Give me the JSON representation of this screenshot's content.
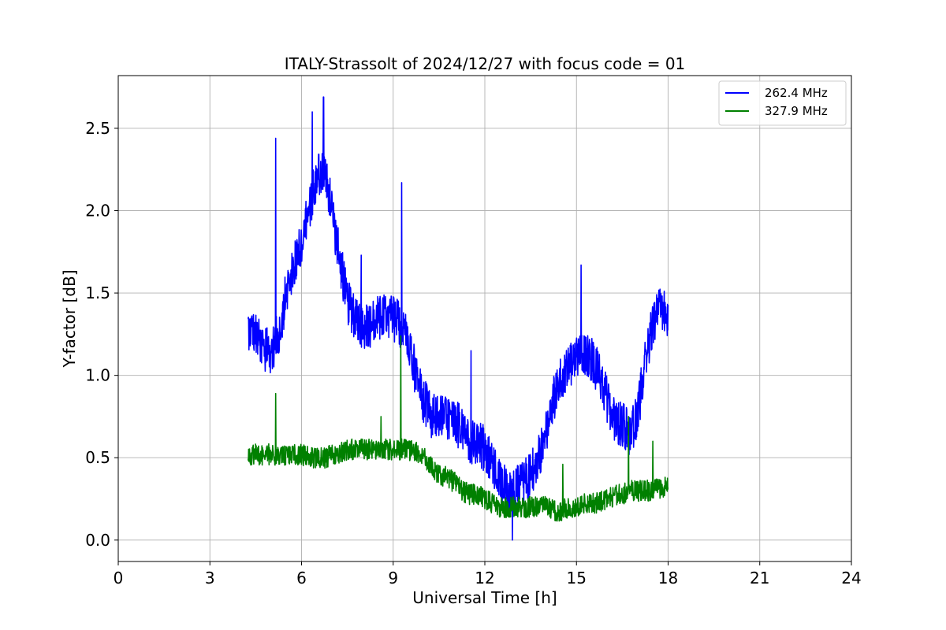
{
  "chart_data": {
    "type": "line",
    "title": "ITALY-Strassolt of 2024/12/27 with focus code = 01",
    "xlabel": "Universal Time [h]",
    "ylabel": "Y-factor [dB]",
    "xlim": [
      0,
      24
    ],
    "ylim": [
      -0.13,
      2.82
    ],
    "xticks": [
      0,
      3,
      6,
      9,
      12,
      15,
      18,
      21,
      24
    ],
    "xtick_labels": [
      "0",
      "3",
      "6",
      "9",
      "12",
      "15",
      "18",
      "21",
      "24"
    ],
    "yticks": [
      0.0,
      0.5,
      1.0,
      1.5,
      2.0,
      2.5
    ],
    "ytick_labels": [
      "0.0",
      "0.5",
      "1.0",
      "1.5",
      "2.0",
      "2.5"
    ],
    "grid": true,
    "legend_position": "top-right",
    "series": [
      {
        "name": "262.4 MHz",
        "color": "#0000ff",
        "x": [
          4.25,
          4.5,
          4.75,
          5.0,
          5.25,
          5.5,
          5.75,
          6.0,
          6.25,
          6.5,
          6.75,
          7.0,
          7.25,
          7.5,
          7.75,
          8.0,
          8.25,
          8.5,
          8.75,
          9.0,
          9.25,
          9.5,
          9.75,
          10.0,
          10.25,
          10.5,
          10.75,
          11.0,
          11.25,
          11.5,
          11.75,
          12.0,
          12.25,
          12.5,
          12.75,
          13.0,
          13.25,
          13.5,
          13.75,
          14.0,
          14.25,
          14.5,
          14.75,
          15.0,
          15.25,
          15.5,
          15.75,
          16.0,
          16.25,
          16.5,
          16.75,
          17.0,
          17.25,
          17.5,
          17.75,
          18.0
        ],
        "y": [
          1.3,
          1.25,
          1.15,
          1.15,
          1.25,
          1.5,
          1.65,
          1.82,
          2.0,
          2.22,
          2.25,
          2.0,
          1.7,
          1.45,
          1.35,
          1.3,
          1.3,
          1.35,
          1.35,
          1.35,
          1.3,
          1.2,
          1.0,
          0.85,
          0.75,
          0.75,
          0.75,
          0.7,
          0.7,
          0.6,
          0.6,
          0.55,
          0.45,
          0.35,
          0.3,
          0.3,
          0.35,
          0.4,
          0.5,
          0.65,
          0.85,
          1.0,
          1.05,
          1.1,
          1.12,
          1.1,
          1.0,
          0.85,
          0.72,
          0.7,
          0.65,
          0.75,
          1.1,
          1.3,
          1.4,
          1.35
        ],
        "amplitude": 0.14,
        "spikes": [
          {
            "x": 5.15,
            "y": 2.44
          },
          {
            "x": 6.35,
            "y": 2.6
          },
          {
            "x": 6.72,
            "y": 2.69
          },
          {
            "x": 9.28,
            "y": 2.17
          },
          {
            "x": 7.95,
            "y": 1.73
          },
          {
            "x": 11.55,
            "y": 1.15
          },
          {
            "x": 12.9,
            "y": 0.0
          },
          {
            "x": 15.15,
            "y": 1.67
          }
        ]
      },
      {
        "name": "327.9 MHz",
        "color": "#008000",
        "x": [
          4.25,
          4.5,
          4.75,
          5.0,
          5.25,
          5.5,
          5.75,
          6.0,
          6.25,
          6.5,
          6.75,
          7.0,
          7.25,
          7.5,
          7.75,
          8.0,
          8.25,
          8.5,
          8.75,
          9.0,
          9.25,
          9.5,
          9.75,
          10.0,
          10.25,
          10.5,
          10.75,
          11.0,
          11.25,
          11.5,
          11.75,
          12.0,
          12.25,
          12.5,
          12.75,
          13.0,
          13.25,
          13.5,
          13.75,
          14.0,
          14.25,
          14.5,
          14.75,
          15.0,
          15.25,
          15.5,
          15.75,
          16.0,
          16.25,
          16.5,
          16.75,
          17.0,
          17.25,
          17.5,
          17.75,
          18.0
        ],
        "y": [
          0.52,
          0.52,
          0.52,
          0.52,
          0.52,
          0.52,
          0.52,
          0.52,
          0.5,
          0.5,
          0.5,
          0.52,
          0.53,
          0.55,
          0.55,
          0.55,
          0.55,
          0.55,
          0.55,
          0.55,
          0.55,
          0.55,
          0.53,
          0.5,
          0.45,
          0.4,
          0.38,
          0.35,
          0.3,
          0.28,
          0.27,
          0.25,
          0.22,
          0.2,
          0.2,
          0.2,
          0.2,
          0.2,
          0.2,
          0.2,
          0.18,
          0.18,
          0.2,
          0.2,
          0.22,
          0.22,
          0.23,
          0.25,
          0.27,
          0.28,
          0.3,
          0.3,
          0.3,
          0.3,
          0.32,
          0.32
        ],
        "amplitude": 0.065,
        "spikes": [
          {
            "x": 5.15,
            "y": 0.89
          },
          {
            "x": 9.25,
            "y": 1.24
          },
          {
            "x": 8.6,
            "y": 0.75
          },
          {
            "x": 16.7,
            "y": 0.75
          },
          {
            "x": 17.5,
            "y": 0.6
          },
          {
            "x": 14.55,
            "y": 0.46
          }
        ]
      }
    ]
  }
}
